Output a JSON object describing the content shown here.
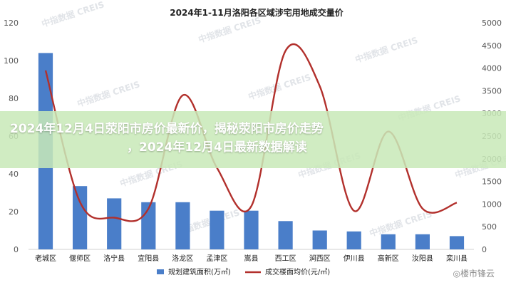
{
  "banner": {
    "line1": "2024年12月4日荥阳市房价最新价，揭秘荥阳市房价走势",
    "line2": "，2024年12月4日最新数据解读"
  },
  "watermark": {
    "brand_a": "中指数据",
    "brand_b": "CREIS"
  },
  "source_mark": "◎楼市锋云",
  "colors": {
    "bar": "#4a7ec9",
    "line": "#b2302c",
    "banner": "#c8e9b8"
  },
  "chart_data": {
    "type": "bar",
    "title": "2024年1-11月洛阳各区域涉宅用地成交量价",
    "categories": [
      "老城区",
      "偃师区",
      "洛宁县",
      "宜阳县",
      "洛龙区",
      "孟津区",
      "嵩县",
      "西工区",
      "涧西区",
      "伊川县",
      "高新区",
      "汝阳县",
      "栾川县"
    ],
    "series": [
      {
        "name": "规划建筑面积(万㎡)",
        "type": "bar",
        "axis": "left",
        "values": [
          104,
          33.5,
          27,
          25,
          25,
          20.5,
          20.5,
          15,
          10,
          9.5,
          8,
          8,
          7
        ]
      },
      {
        "name": "成交楼面均价(元/㎡)",
        "type": "line",
        "axis": "right",
        "values": [
          3950,
          1050,
          700,
          900,
          3400,
          1800,
          950,
          4380,
          3600,
          850,
          2600,
          900,
          1030
        ]
      }
    ],
    "y_left": {
      "ylim": [
        0,
        120
      ],
      "ticks": [
        0,
        20,
        40,
        60,
        80,
        100,
        120
      ]
    },
    "y_right": {
      "ylim": [
        0,
        5000
      ],
      "ticks": [
        0,
        500,
        1000,
        1500,
        2000,
        2500,
        3000,
        3500,
        4000,
        4500,
        5000
      ]
    },
    "legend_position": "bottom",
    "grid": false
  }
}
